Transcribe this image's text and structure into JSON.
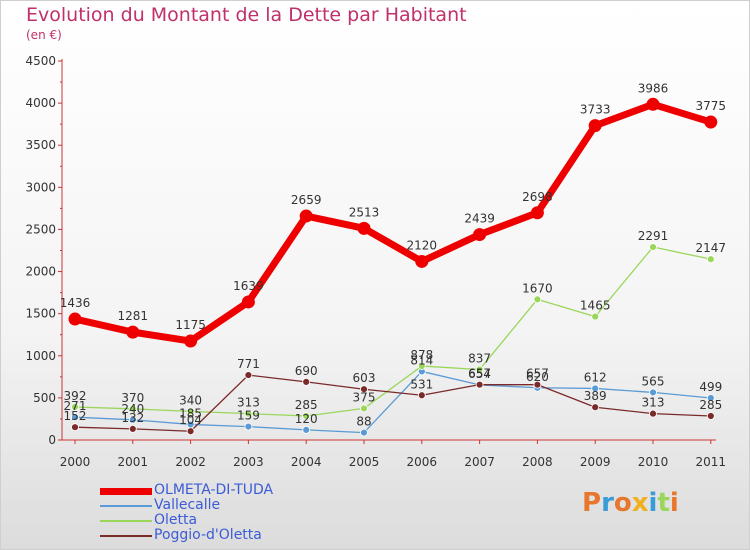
{
  "chart_data": {
    "type": "line",
    "title": "Evolution du Montant de la Dette par Habitant",
    "subtitle": "(en €)",
    "x": [
      "2000",
      "2001",
      "2002",
      "2003",
      "2004",
      "2005",
      "2006",
      "2007",
      "2008",
      "2009",
      "2010",
      "2011"
    ],
    "ylim": [
      0,
      4500
    ],
    "yticks": [
      0,
      500,
      1000,
      1500,
      2000,
      2500,
      3000,
      3500,
      4000,
      4500
    ],
    "grid": false,
    "legend_position": "bottom-left",
    "series": [
      {
        "name": "OLMETA-DI-TUDA",
        "color": "#ee0000",
        "values": [
          1436,
          1281,
          1175,
          1639,
          2659,
          2513,
          2120,
          2439,
          2698,
          3733,
          3986,
          3775
        ]
      },
      {
        "name": "Vallecalle",
        "color": "#5b9bd5",
        "values": [
          271,
          240,
          185,
          159,
          120,
          88,
          814,
          654,
          620,
          612,
          565,
          499
        ]
      },
      {
        "name": "Oletta",
        "color": "#9ad65a",
        "values": [
          392,
          370,
          340,
          313,
          285,
          375,
          878,
          837,
          1670,
          1465,
          2291,
          2147
        ]
      },
      {
        "name": "Poggio-d'Oletta",
        "color": "#7b2a2a",
        "values": [
          152,
          132,
          104,
          771,
          690,
          603,
          531,
          657,
          657,
          389,
          313,
          285
        ]
      }
    ]
  },
  "watermark": {
    "text": "Proxiti",
    "colors": [
      "#e8772e",
      "#3a9bd9",
      "#e8772e",
      "#f2b01e",
      "#3a9bd9",
      "#9ad65a",
      "#e8772e"
    ]
  }
}
